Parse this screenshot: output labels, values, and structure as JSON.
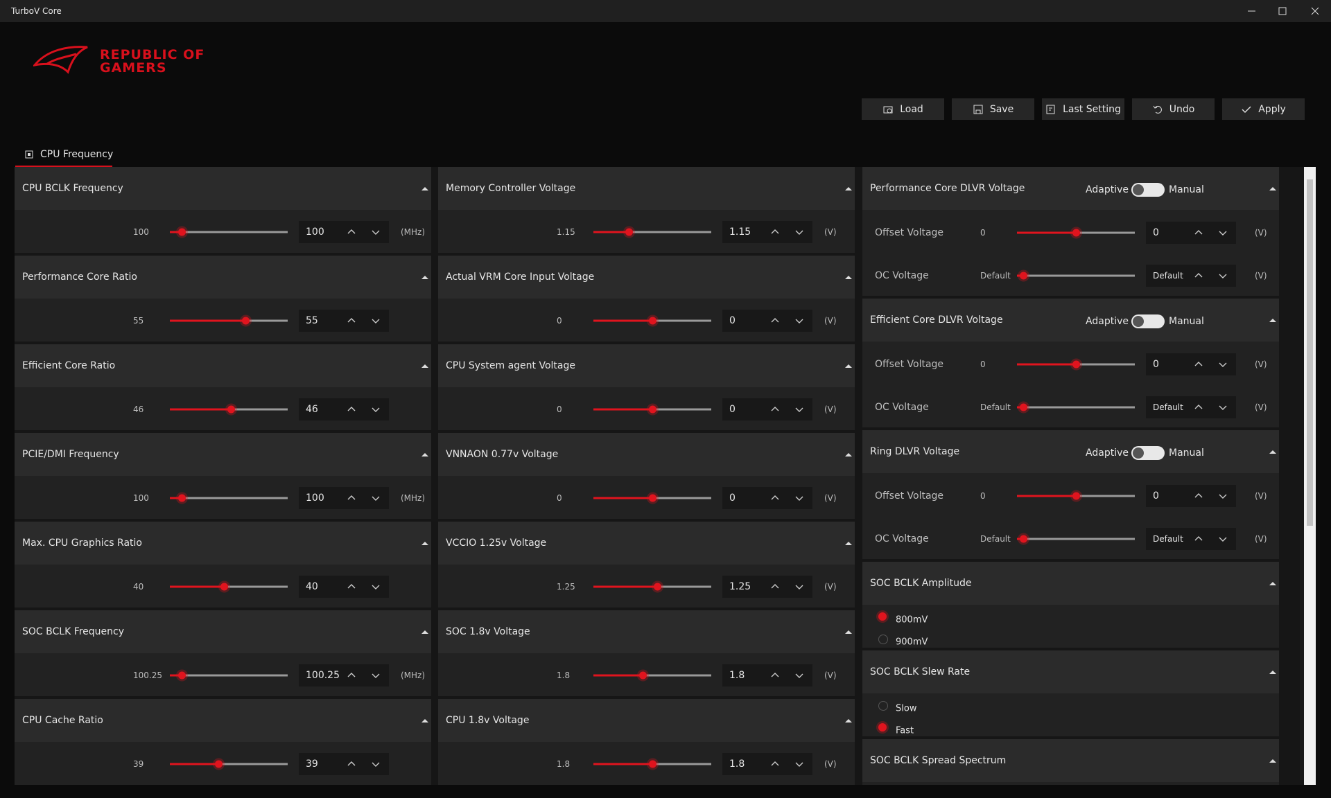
{
  "window": {
    "title": "TurboV Core"
  },
  "logo": {
    "line1": "REPUBLIC OF",
    "line2": "GAMERS"
  },
  "toolbar": [
    "Load",
    "Save",
    "Last Setting",
    "Undo",
    "Apply"
  ],
  "tab": "CPU Frequency",
  "columns": [
    [
      {
        "title": "CPU BCLK Frequency",
        "default": "100",
        "value": "100",
        "unit": "(MHz)"
      },
      {
        "title": "Performance Core Ratio",
        "default": "55",
        "value": "55"
      },
      {
        "title": "Efficient Core Ratio",
        "default": "46",
        "value": "46"
      },
      {
        "title": "PCIE/DMI Frequency",
        "default": "100",
        "value": "100",
        "unit": "(MHz)"
      },
      {
        "title": "Max. CPU Graphics Ratio",
        "default": "40",
        "value": "40"
      },
      {
        "title": "SOC BCLK Frequency",
        "default": "100.25",
        "value": "100.25",
        "unit": "(MHz)"
      },
      {
        "title": "CPU Cache Ratio",
        "default": "39",
        "value": "39"
      }
    ],
    [
      {
        "title": "Memory Controller Voltage",
        "default": "1.15",
        "value": "1.15",
        "unit": "(V)"
      },
      {
        "title": "Actual VRM Core Input Voltage",
        "default": "0",
        "value": "0",
        "unit": "(V)"
      },
      {
        "title": "CPU System agent Voltage",
        "default": "0",
        "value": "0",
        "unit": "(V)"
      },
      {
        "title": "VNNAON 0.77v Voltage",
        "default": "0",
        "value": "0",
        "unit": "(V)"
      },
      {
        "title": "VCCIO 1.25v Voltage",
        "default": "1.25",
        "value": "1.25",
        "unit": "(V)"
      },
      {
        "title": "SOC 1.8v Voltage",
        "default": "1.8",
        "value": "1.8",
        "unit": "(V)"
      },
      {
        "title": "CPU 1.8v Voltage",
        "default": "1.8",
        "value": "1.8",
        "unit": "(V)"
      }
    ]
  ],
  "dlvr": [
    {
      "title": "Performance Core DLVR Voltage",
      "mode_left": "Adaptive",
      "mode_right": "Manual",
      "rows": [
        {
          "label": "Offset Voltage",
          "default": "0",
          "value": "0",
          "unit": "(V)"
        },
        {
          "label": "OC Voltage",
          "default": "Default",
          "value": "Default",
          "unit": "(V)"
        }
      ]
    },
    {
      "title": "Efficient Core DLVR Voltage",
      "mode_left": "Adaptive",
      "mode_right": "Manual",
      "rows": [
        {
          "label": "Offset Voltage",
          "default": "0",
          "value": "0",
          "unit": "(V)"
        },
        {
          "label": "OC Voltage",
          "default": "Default",
          "value": "Default",
          "unit": "(V)"
        }
      ]
    },
    {
      "title": "Ring DLVR Voltage",
      "mode_left": "Adaptive",
      "mode_right": "Manual",
      "rows": [
        {
          "label": "Offset Voltage",
          "default": "0",
          "value": "0",
          "unit": "(V)"
        },
        {
          "label": "OC Voltage",
          "default": "Default",
          "value": "Default",
          "unit": "(V)"
        }
      ]
    }
  ],
  "options": [
    {
      "title": "SOC BCLK Amplitude",
      "choices": [
        "800mV",
        "900mV"
      ]
    },
    {
      "title": "SOC BCLK Slew Rate",
      "choices": [
        "Slow",
        "Fast"
      ]
    },
    {
      "title": "SOC BCLK Spread Spectrum",
      "choices": []
    }
  ]
}
